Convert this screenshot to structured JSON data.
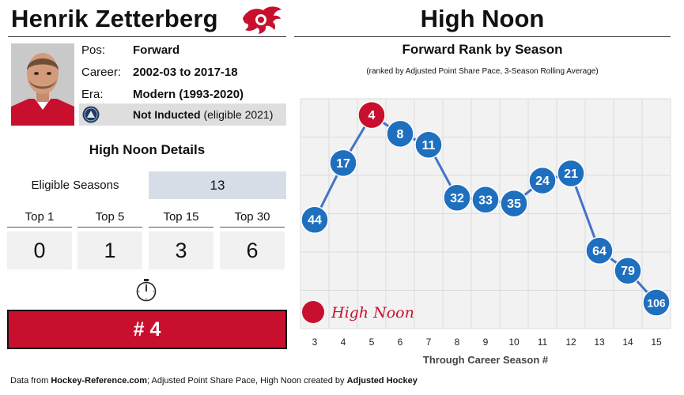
{
  "player": {
    "name": "Henrik Zetterberg",
    "labels": {
      "pos": "Pos:",
      "career": "Career:",
      "era": "Era:"
    },
    "pos": "Forward",
    "career": "2002-03 to 2017-18",
    "era": "Modern (1993-2020)",
    "hof_status": "Not Inducted",
    "hof_note": "(eligible 2021)"
  },
  "page_title": "High Noon",
  "details": {
    "title": "High Noon Details",
    "eligible_label": "Eligible Seasons",
    "eligible_value": "13",
    "tops": [
      {
        "label": "Top 1",
        "value": "0"
      },
      {
        "label": "Top 5",
        "value": "1"
      },
      {
        "label": "Top 15",
        "value": "3"
      },
      {
        "label": "Top 30",
        "value": "6"
      }
    ],
    "result": "# 4"
  },
  "colors": {
    "accent_red": "#c8102e",
    "series_blue": "#1f6fbf",
    "line_blue": "#4472c4",
    "plot_bg": "#f2f2f2"
  },
  "icons": {
    "logo": "red-wings-logo",
    "hof": "hall-of-fame-icon",
    "clock": "clock-icon"
  },
  "chart_data": {
    "type": "line",
    "title": "Forward Rank by Season",
    "subtitle": "(ranked by Adjusted Point Share Pace, 3-Season Rolling Average)",
    "xlabel": "Through Career Season #",
    "ylabel": "",
    "x": [
      3,
      4,
      5,
      6,
      7,
      8,
      9,
      10,
      11,
      12,
      13,
      14,
      15
    ],
    "series": [
      {
        "values": [
          44,
          17,
          4,
          8,
          11,
          32,
          33,
          35,
          24,
          21,
          64,
          79,
          106
        ]
      }
    ],
    "highlight": {
      "x": 5,
      "value": 4
    },
    "legend": {
      "label": "High Noon",
      "placement": "bottom-left"
    },
    "y_scale": "sqrt",
    "y_inverted": true,
    "ylim": [
      1,
      106
    ],
    "grid": true
  },
  "footer": {
    "prefix": "Data from ",
    "source": "Hockey-Reference.com",
    "middle": "; Adjusted Point Share Pace, High Noon created by ",
    "creator": "Adjusted Hockey"
  }
}
